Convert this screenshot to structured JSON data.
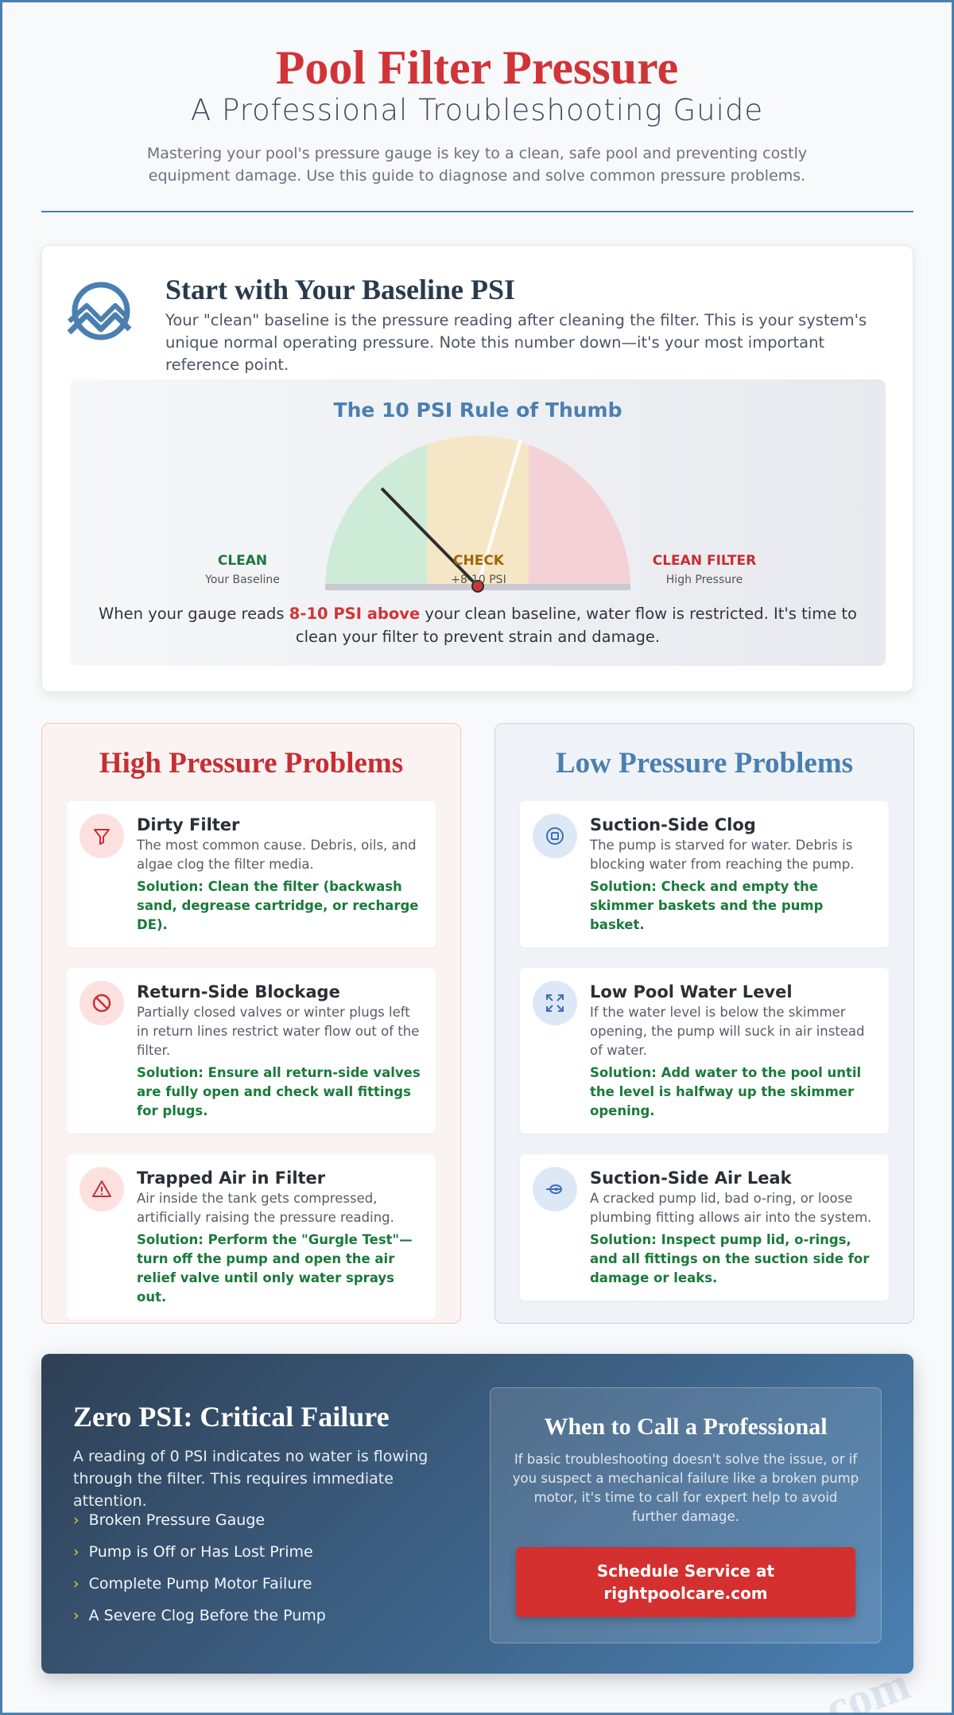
{
  "header": {
    "title": "Pool Filter Pressure",
    "subtitle": "A Professional Troubleshooting Guide",
    "intro": "Mastering your pool's pressure gauge is key to a clean, safe pool and preventing costly equipment damage. Use this guide to diagnose and solve common pressure problems."
  },
  "baseline": {
    "title": "Start with Your Baseline PSI",
    "text": "Your \"clean\" baseline is the pressure reading after cleaning the filter. This is your system's unique normal operating pressure. Note this number down—it's your most important reference point."
  },
  "gauge": {
    "title": "The 10 PSI Rule of Thumb",
    "zones": [
      {
        "label": "CLEAN",
        "sub": "Your Baseline"
      },
      {
        "label": "CHECK",
        "sub": "+8-10 PSI"
      },
      {
        "label": "CLEAN FILTER",
        "sub": "High Pressure"
      }
    ],
    "caption": {
      "before": "When your gauge reads ",
      "highlight": "8-10 PSI above",
      "after": " your clean baseline, water flow is restricted. It's time to clean your filter to prevent strain and damage."
    }
  },
  "high": {
    "title": "High Pressure Problems",
    "items": [
      {
        "title": "Dirty Filter",
        "text": "The most common cause. Debris, oils, and algae clog the filter media.",
        "solution": "Solution: Clean the filter (backwash sand, degrease cartridge, or recharge DE)."
      },
      {
        "title": "Return-Side Blockage",
        "text": "Partially closed valves or winter plugs left in return lines restrict water flow out of the filter.",
        "solution": "Solution: Ensure all return-side valves are fully open and check wall fittings for plugs."
      },
      {
        "title": "Trapped Air in Filter",
        "text": "Air inside the tank gets compressed, artificially raising the pressure reading.",
        "solution": "Solution: Perform the \"Gurgle Test\"—turn off the pump and open the air relief valve until only water sprays out."
      }
    ]
  },
  "low": {
    "title": "Low Pressure Problems",
    "items": [
      {
        "title": "Suction-Side Clog",
        "text": "The pump is starved for water. Debris is blocking water from reaching the pump.",
        "solution": "Solution: Check and empty the skimmer baskets and the pump basket."
      },
      {
        "title": "Low Pool Water Level",
        "text": "If the water level is below the skimmer opening, the pump will suck in air instead of water.",
        "solution": "Solution: Add water to the pool until the level is halfway up the skimmer opening."
      },
      {
        "title": "Suction-Side Air Leak",
        "text": "A cracked pump lid, bad o-ring, or loose plumbing fitting allows air into the system.",
        "solution": "Solution: Inspect pump lid, o-rings, and all fittings on the suction side for damage or leaks."
      }
    ]
  },
  "zero": {
    "title": "Zero PSI: Critical Failure",
    "text": "A reading of 0 PSI indicates no water is flowing through the filter. This requires immediate attention.",
    "causes": [
      "Broken Pressure Gauge",
      "Pump is Off or Has Lost Prime",
      "Complete Pump Motor Failure",
      "A Severe Clog Before the Pump"
    ]
  },
  "pro": {
    "title": "When to Call a Professional",
    "text": "If basic troubleshooting doesn't solve the issue, or if you suspect a mechanical failure like a broken pump motor, it's time to call for expert help to avoid further damage.",
    "button": "Schedule Service at rightpoolcare.com"
  },
  "watermark": "com"
}
